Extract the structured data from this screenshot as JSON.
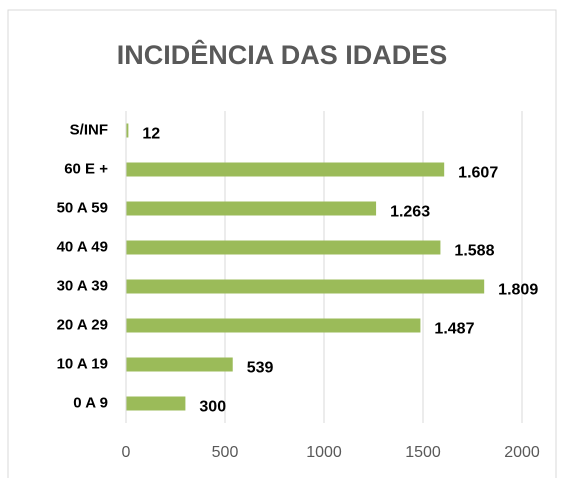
{
  "chart_data": {
    "type": "bar",
    "orientation": "horizontal",
    "title": "INCIDÊNCIA DAS IDADES",
    "categories": [
      "S/INF",
      "60 E +",
      "50 A 59",
      "40 A 49",
      "30 A 39",
      "20 A 29",
      "10 A 19",
      "0 A 9"
    ],
    "values": [
      12,
      1607,
      1263,
      1588,
      1809,
      1487,
      539,
      300
    ],
    "value_labels": [
      "12",
      "1.607",
      "1.263",
      "1.588",
      "1.809",
      "1.487",
      "539",
      "300"
    ],
    "color": "#9bbb59",
    "xlim": [
      0,
      2000
    ],
    "xticks": [
      0,
      500,
      1000,
      1500,
      2000
    ],
    "grid": true
  }
}
